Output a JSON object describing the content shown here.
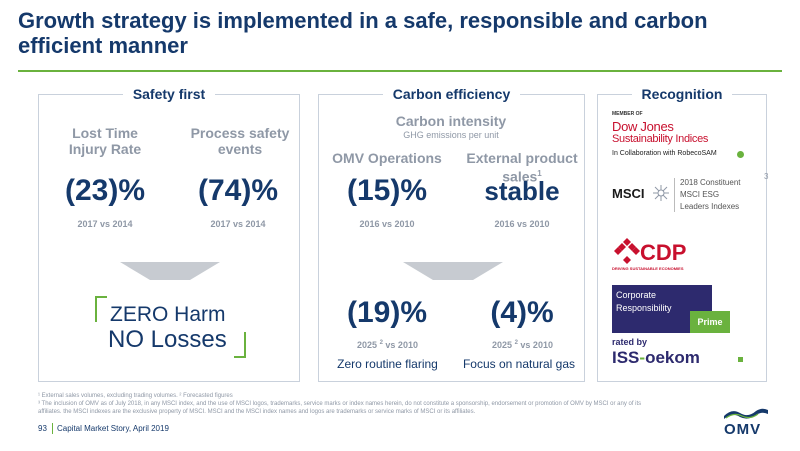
{
  "title": "Growth strategy is implemented in a safe, responsible and carbon efficient manner",
  "safety": {
    "header": "Safety first",
    "lti_label": "Lost Time Injury Rate",
    "lti_value": "(23)%",
    "lti_period": "2017 vs 2014",
    "pse_label": "Process safety events",
    "pse_value": "(74)%",
    "pse_period": "2017 vs 2014",
    "zero_line1": "ZERO Harm",
    "zero_line2": "NO Losses"
  },
  "carbon": {
    "header": "Carbon efficiency",
    "intensity_title": "Carbon intensity",
    "intensity_sub": "GHG emissions per unit",
    "ops_label": "OMV Operations",
    "ops_value": "(15)%",
    "ops_period": "2016 vs 2010",
    "ext_label": "External product sales",
    "ext_sup": "1",
    "ext_value": "stable",
    "ext_period": "2016 vs 2010",
    "flaring_value": "(19)%",
    "flaring_period_a": "2025",
    "flaring_sup": "2",
    "flaring_period_b": "vs 2010",
    "flaring_desc": "Zero routine flaring",
    "gas_value": "(4)%",
    "gas_period_a": "2025",
    "gas_sup": "2",
    "gas_period_b": "vs 2010",
    "gas_desc": "Focus on natural gas"
  },
  "recognition": {
    "header": "Recognition",
    "djsi_member": "MEMBER OF",
    "djsi_line1": "Dow Jones",
    "djsi_line2": "Sustainability Indices",
    "djsi_line3": "In Collaboration with RobecoSAM",
    "footnote_ref": "3",
    "msci_name": "MSCI",
    "msci_line1": "2018 Constituent",
    "msci_line2": "MSCI ESG",
    "msci_line3": "Leaders Indexes",
    "cdp_name": "CDP",
    "cdp_sub": "DRIVING SUSTAINABLE ECONOMIES",
    "cr_line1": "Corporate",
    "cr_line2": "Responsibility",
    "cr_prime": "Prime",
    "rated_by": "rated by",
    "iss_a": "ISS",
    "iss_b": "oekom"
  },
  "footnotes": {
    "line1": "¹ External sales volumes, excluding trading volumes. ² Forecasted figures",
    "line2": "³ The inclusion of OMV as of July 2018, in any MSCI index, and the use of MSCI logos, trademarks, service marks or index names herein, do not constitute a sponsorship, endorsement or promotion of OMV by MSCI or any of its",
    "line3": "affiliates. the MSCI indexes are the exclusive property of MSCI. MSCI and the MSCI index names and logos are trademarks or service marks of MSCI or its affiliates."
  },
  "footer": {
    "page": "93",
    "text": "Capital Market Story, April 2019",
    "logo": "OMV"
  },
  "colors": {
    "navy": "#15396b",
    "green": "#6ab23e",
    "grey": "#8f98a6",
    "cdp_red": "#c8102e",
    "djsi_red": "#c8102e",
    "cr_purple": "#2d2a6e"
  }
}
